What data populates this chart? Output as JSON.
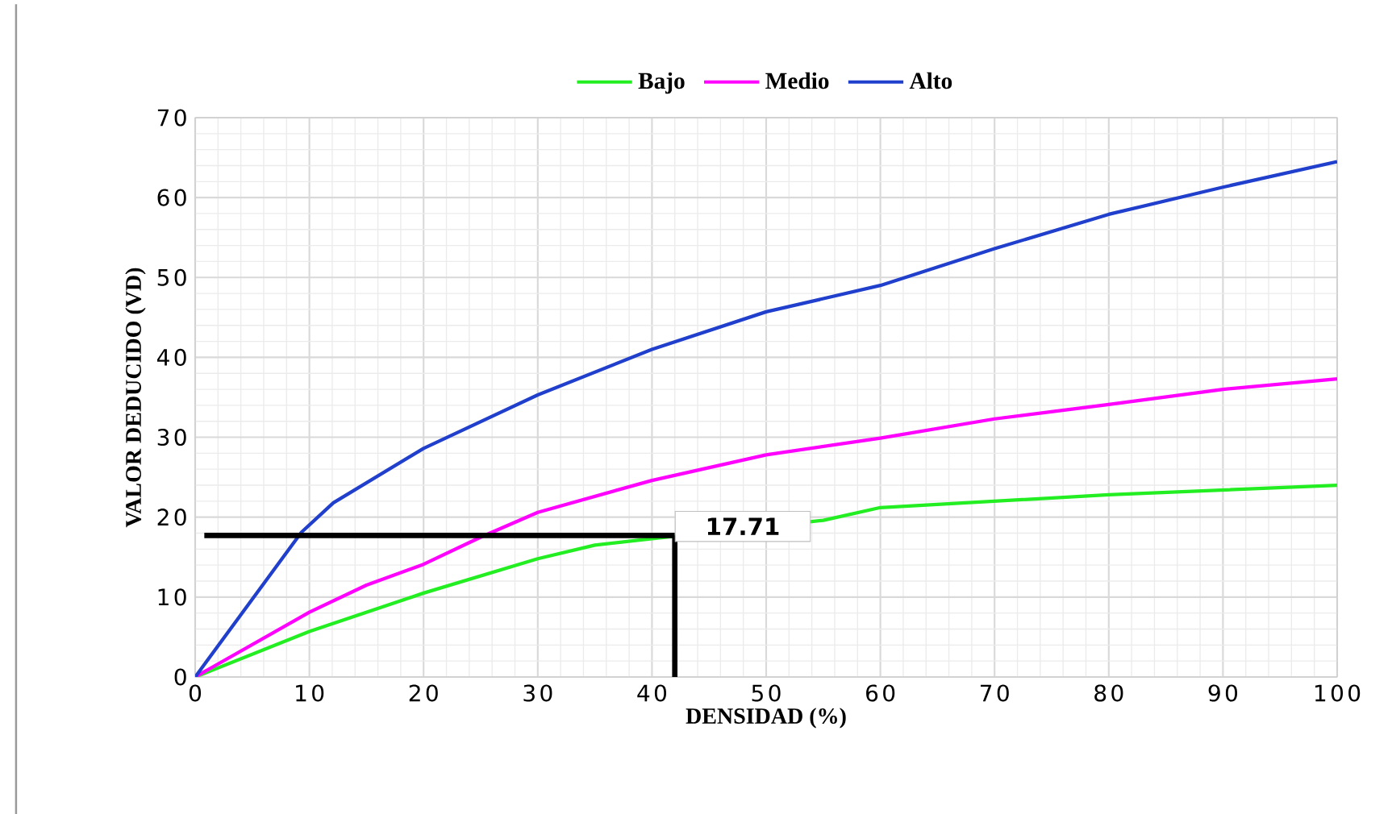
{
  "chart_data": {
    "type": "line",
    "xlabel": "DENSIDAD (%)",
    "ylabel": "VALOR DEDUCIDO (VD)",
    "xlim": [
      0,
      100
    ],
    "ylim": [
      0,
      70
    ],
    "xticks": [
      0,
      10,
      20,
      30,
      40,
      50,
      60,
      70,
      80,
      90,
      100
    ],
    "yticks": [
      0,
      10,
      20,
      30,
      40,
      50,
      60,
      70
    ],
    "grid": true,
    "legend": "top",
    "marker": "none",
    "line_style": "solid",
    "series": [
      {
        "name": "Bajo",
        "color": "#22ee22",
        "x": [
          0,
          10,
          20,
          30,
          35,
          40,
          55,
          60,
          80,
          100
        ],
        "values": [
          0,
          5.7,
          10.5,
          14.8,
          16.5,
          17.3,
          19.6,
          21.2,
          22.8,
          24
        ]
      },
      {
        "name": "Medio",
        "color": "#ff00ff",
        "x": [
          0,
          10,
          15,
          20,
          25,
          30,
          40,
          50,
          60,
          70,
          80,
          90,
          100
        ],
        "values": [
          0,
          8.1,
          11.5,
          14.1,
          17.5,
          20.6,
          24.6,
          27.8,
          29.9,
          32.3,
          34.1,
          36,
          37.3
        ]
      },
      {
        "name": "Alto",
        "color": "#1f3fcc",
        "x": [
          0,
          9.3,
          12.1,
          20,
          30,
          40,
          50,
          60,
          70,
          80,
          90,
          100
        ],
        "values": [
          0,
          18.1,
          21.8,
          28.6,
          35.3,
          41,
          45.7,
          49,
          53.6,
          57.9,
          61.3,
          64.5
        ]
      }
    ],
    "ref_lines": [
      {
        "axis": "y",
        "value": 17.71,
        "color": "#000000"
      },
      {
        "axis": "x",
        "value": 42,
        "color": "#000000"
      }
    ],
    "annotations": [
      {
        "text": "17.71",
        "x": 42,
        "y": 17.71
      }
    ]
  }
}
